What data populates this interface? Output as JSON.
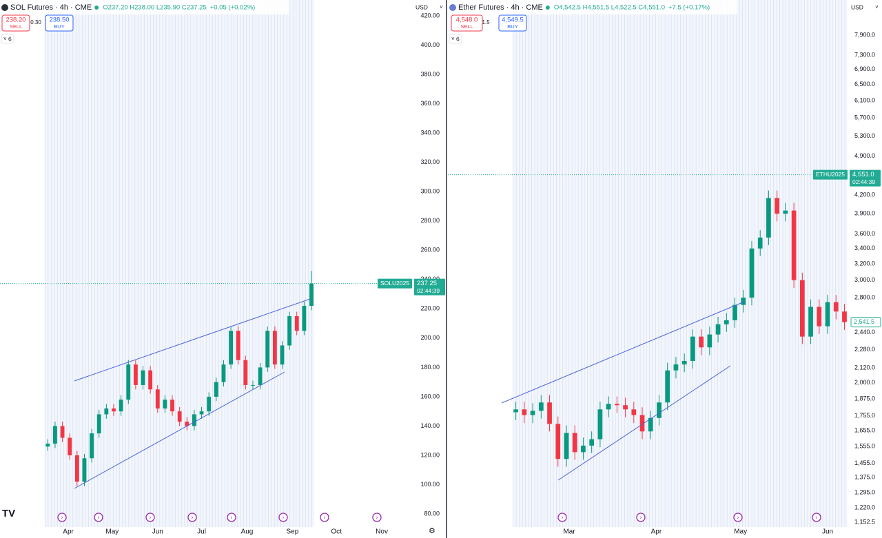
{
  "chart_data": [
    {
      "type": "candlestick",
      "title": "SOL Futures · 4h · CME",
      "ohlc": "O237.20 H238.00 L235.90 C237.25",
      "change": "+0.05 (+0.02%)",
      "sell_price": "238.20",
      "sell_label": "SELL",
      "spread": "0.30",
      "buy_price": "238.50",
      "buy_label": "BUY",
      "indicators": 6,
      "currency": "USD",
      "symbol": "SOLU2025",
      "last_price": 237.25,
      "countdown": "02:44:39",
      "up_color": "#089981",
      "down_color": "#f23645",
      "grid": false,
      "log_scale": false,
      "x": [
        77,
        82,
        87,
        92,
        97,
        102,
        107,
        112,
        117,
        122,
        127,
        132,
        137,
        142,
        147,
        152,
        157,
        162,
        167,
        172,
        177,
        182,
        187,
        192,
        197,
        202,
        207,
        212,
        217,
        222,
        227,
        232,
        237,
        242,
        247,
        252,
        257
      ],
      "open": [
        126,
        128,
        140,
        132,
        120,
        102,
        118,
        135,
        148,
        152,
        150,
        158,
        182,
        168,
        178,
        165,
        152,
        158,
        150,
        143,
        140,
        148,
        150,
        160,
        170,
        182,
        205,
        185,
        168,
        168,
        180,
        205,
        182,
        195,
        215,
        205,
        222
      ],
      "high": [
        131,
        143,
        143,
        135,
        123,
        121,
        138,
        151,
        155,
        155,
        161,
        185,
        185,
        181,
        181,
        168,
        161,
        161,
        153,
        146,
        151,
        153,
        163,
        173,
        185,
        208,
        208,
        188,
        171,
        183,
        208,
        208,
        198,
        218,
        218,
        225,
        246
      ],
      "low": [
        123,
        125,
        129,
        117,
        99,
        99,
        115,
        132,
        145,
        147,
        147,
        155,
        165,
        165,
        162,
        149,
        149,
        147,
        140,
        137,
        137,
        145,
        147,
        157,
        167,
        179,
        182,
        165,
        165,
        165,
        177,
        179,
        179,
        192,
        202,
        202,
        219
      ],
      "close": [
        128,
        140,
        132,
        120,
        102,
        118,
        135,
        148,
        152,
        150,
        158,
        182,
        168,
        178,
        165,
        152,
        158,
        150,
        143,
        140,
        148,
        150,
        160,
        170,
        182,
        205,
        185,
        168,
        168,
        180,
        205,
        182,
        195,
        215,
        205,
        222,
        237.25
      ],
      "xlim": [
        44.4,
        326.6
      ],
      "xticks": [
        {
          "value": 91,
          "label": "Apr"
        },
        {
          "value": 121,
          "label": "May"
        },
        {
          "value": 152,
          "label": "Jun"
        },
        {
          "value": 182,
          "label": "Jul"
        },
        {
          "value": 213,
          "label": "Aug"
        },
        {
          "value": 244,
          "label": "Sep"
        },
        {
          "value": 274,
          "label": "Oct"
        },
        {
          "value": 305,
          "label": "Nov"
        }
      ],
      "ylim": [
        71.1,
        430.8
      ],
      "yticks": [
        {
          "value": 80,
          "label": "80.00"
        },
        {
          "value": 100,
          "label": "100.00"
        },
        {
          "value": 120,
          "label": "120.00"
        },
        {
          "value": 140,
          "label": "140.00"
        },
        {
          "value": 160,
          "label": "160.00"
        },
        {
          "value": 180,
          "label": "180.00"
        },
        {
          "value": 200,
          "label": "200.00"
        },
        {
          "value": 220,
          "label": "220.00"
        },
        {
          "value": 240,
          "label": "240.00"
        },
        {
          "value": 260,
          "label": "260.00"
        },
        {
          "value": 280,
          "label": "280.00"
        },
        {
          "value": 300,
          "label": "300.00"
        },
        {
          "value": 320,
          "label": "320.00"
        },
        {
          "value": 340,
          "label": "340.00"
        },
        {
          "value": 360,
          "label": "360.00"
        },
        {
          "value": 380,
          "label": "380.00"
        },
        {
          "value": 400,
          "label": "400.00"
        },
        {
          "value": 420,
          "label": "420.00"
        }
      ]
    },
    {
      "type": "candlestick",
      "title": "Ether Futures · 4h · CME",
      "ohlc": "O4,542.5 H4,551.5 L4,522.5 C4,551.0",
      "change": "+7.5 (+0.17%)",
      "sell_price": "4,548.0",
      "sell_label": "SELL",
      "spread": "1.5",
      "buy_price": "4,549.5",
      "buy_label": "BUY",
      "indicators": 6,
      "currency": "USD",
      "symbol": "ETHU2025",
      "last_price": {
        "value": 4551,
        "label": "4,551.0"
      },
      "countdown": "02:44:39",
      "close_label": "2,541.5",
      "up_color": "#089981",
      "down_color": "#f23645",
      "grid": false,
      "log_scale": true,
      "x": [
        41,
        44,
        47,
        50,
        53,
        56,
        59,
        62,
        65,
        68,
        71,
        74,
        77,
        80,
        83,
        86,
        89,
        92,
        95,
        98,
        101,
        104,
        107,
        110,
        113,
        116,
        119,
        122,
        125,
        128,
        131,
        134,
        137,
        140,
        143,
        146,
        149,
        152,
        155,
        158
      ],
      "open": [
        1780,
        1800,
        1760,
        1790,
        1850,
        1700,
        1480,
        1640,
        1520,
        1560,
        1600,
        1800,
        1840,
        1830,
        1800,
        1760,
        1650,
        1740,
        1850,
        2100,
        2150,
        2180,
        2400,
        2300,
        2420,
        2520,
        2560,
        2720,
        2800,
        3400,
        3550,
        4150,
        3900,
        3950,
        3000,
        2400,
        2700,
        2500,
        2750,
        2650
      ],
      "high": [
        1855,
        1855,
        1845,
        1905,
        1905,
        1750,
        1690,
        1690,
        1610,
        1650,
        1855,
        1895,
        1895,
        1885,
        1855,
        1815,
        1790,
        1905,
        2165,
        2215,
        2245,
        2470,
        2470,
        2495,
        2595,
        2635,
        2800,
        2885,
        3500,
        3655,
        4275,
        4275,
        4070,
        4070,
        3090,
        2780,
        2780,
        2830,
        2830,
        2730
      ],
      "low": [
        1725,
        1705,
        1705,
        1735,
        1650,
        1435,
        1435,
        1475,
        1475,
        1515,
        1550,
        1745,
        1775,
        1745,
        1705,
        1600,
        1600,
        1690,
        1795,
        2035,
        2085,
        2115,
        2230,
        2230,
        2345,
        2445,
        2485,
        2640,
        2715,
        3300,
        3445,
        3785,
        3785,
        2910,
        2330,
        2330,
        2425,
        2425,
        2570,
        2465
      ],
      "close": [
        1800,
        1760,
        1790,
        1850,
        1700,
        1480,
        1640,
        1520,
        1560,
        1600,
        1800,
        1840,
        1830,
        1800,
        1760,
        1650,
        1740,
        1850,
        2100,
        2150,
        2180,
        2400,
        2300,
        2420,
        2520,
        2560,
        2720,
        2800,
        3400,
        3550,
        4150,
        3900,
        3950,
        3000,
        2400,
        2700,
        2500,
        2750,
        2650,
        2541.5
      ],
      "xlim": [
        16.8,
        159.6
      ],
      "xticks": [
        {
          "value": 60,
          "label": "Mar"
        },
        {
          "value": 91,
          "label": "Apr"
        },
        {
          "value": 121,
          "label": "May"
        },
        {
          "value": 152,
          "label": "Jun"
        }
      ],
      "ylim": [
        1131,
        9077
      ],
      "yticks": [
        {
          "value": 1152.5,
          "label": "1,152.5"
        },
        {
          "value": 1220,
          "label": "1,220.0"
        },
        {
          "value": 1295,
          "label": "1,295.0"
        },
        {
          "value": 1375,
          "label": "1,375.0"
        },
        {
          "value": 1455,
          "label": "1,455.0"
        },
        {
          "value": 1555,
          "label": "1,555.0"
        },
        {
          "value": 1655,
          "label": "1,655.0"
        },
        {
          "value": 1755,
          "label": "1,755.0"
        },
        {
          "value": 1875,
          "label": "1,875.0"
        },
        {
          "value": 2000,
          "label": "2,000.0"
        },
        {
          "value": 2120,
          "label": "2,120.0"
        },
        {
          "value": 2280,
          "label": "2,280.0"
        },
        {
          "value": 2440,
          "label": "2,440.0"
        },
        {
          "value": 2800,
          "label": "2,800.0"
        },
        {
          "value": 3000,
          "label": "3,000.0"
        },
        {
          "value": 3200,
          "label": "3,200.0"
        },
        {
          "value": 3400,
          "label": "3,400.0"
        },
        {
          "value": 3600,
          "label": "3,600.0"
        },
        {
          "value": 3900,
          "label": "3,900.0"
        },
        {
          "value": 4200,
          "label": "4,200.0"
        },
        {
          "value": 4900,
          "label": "4,900.0"
        },
        {
          "value": 5300,
          "label": "5,300.0"
        },
        {
          "value": 5700,
          "label": "5,700.0"
        },
        {
          "value": 6100,
          "label": "6,100.0"
        },
        {
          "value": 6500,
          "label": "6,500.0"
        },
        {
          "value": 6900,
          "label": "6,900.0"
        },
        {
          "value": 7300,
          "label": "7,300.0"
        },
        {
          "value": 7900,
          "label": "7,900.0"
        }
      ]
    }
  ]
}
